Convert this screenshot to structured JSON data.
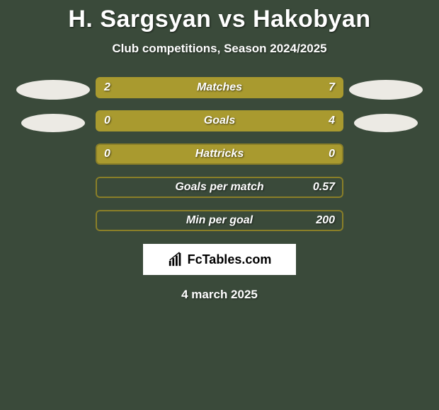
{
  "title": "H. Sargsyan vs Hakobyan",
  "subtitle": "Club competitions, Season 2024/2025",
  "date": "4 march 2025",
  "logo_text": "FcTables.com",
  "colors": {
    "background": "#3a4a3a",
    "bar_olive": "#a99a2f",
    "bar_border": "#8a7f28",
    "ellipse": "#eceae4",
    "text": "#ffffff",
    "logo_bg": "#ffffff",
    "logo_text": "#000000"
  },
  "stats": [
    {
      "label": "Matches",
      "left_value": "2",
      "right_value": "7",
      "left_pct": 22,
      "right_pct": 78,
      "left_color": "#a99a2f",
      "right_color": "#a99a2f"
    },
    {
      "label": "Goals",
      "left_value": "0",
      "right_value": "4",
      "left_pct": 0,
      "right_pct": 100,
      "left_color": "#a99a2f",
      "right_color": "#a99a2f"
    },
    {
      "label": "Hattricks",
      "left_value": "0",
      "right_value": "0",
      "left_pct": 0,
      "right_pct": 0,
      "left_color": "#a99a2f",
      "right_color": "#a99a2f"
    },
    {
      "label": "Goals per match",
      "left_value": "",
      "right_value": "0.57",
      "left_pct": 0,
      "right_pct": 0,
      "left_color": "#a99a2f",
      "right_color": "#a99a2f"
    },
    {
      "label": "Min per goal",
      "left_value": "",
      "right_value": "200",
      "left_pct": 0,
      "right_pct": 0,
      "left_color": "#a99a2f",
      "right_color": "#a99a2f"
    }
  ]
}
